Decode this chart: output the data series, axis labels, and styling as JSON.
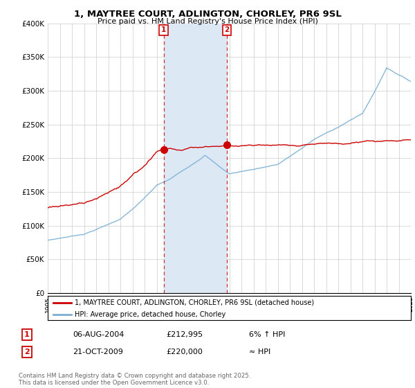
{
  "title_line1": "1, MAYTREE COURT, ADLINGTON, CHORLEY, PR6 9SL",
  "title_line2": "Price paid vs. HM Land Registry's House Price Index (HPI)",
  "ylim": [
    0,
    400000
  ],
  "yticks": [
    0,
    50000,
    100000,
    150000,
    200000,
    250000,
    300000,
    350000,
    400000
  ],
  "ytick_labels": [
    "£0",
    "£50K",
    "£100K",
    "£150K",
    "£200K",
    "£250K",
    "£300K",
    "£350K",
    "£400K"
  ],
  "sale1_date_num": 2004.58,
  "sale1_price": 212995,
  "sale2_date_num": 2009.8,
  "sale2_price": 220000,
  "legend_line1": "1, MAYTREE COURT, ADLINGTON, CHORLEY, PR6 9SL (detached house)",
  "legend_line2": "HPI: Average price, detached house, Chorley",
  "table_rows": [
    [
      "1",
      "06-AUG-2004",
      "£212,995",
      "6% ↑ HPI"
    ],
    [
      "2",
      "21-OCT-2009",
      "£220,000",
      "≈ HPI"
    ]
  ],
  "footer": "Contains HM Land Registry data © Crown copyright and database right 2025.\nThis data is licensed under the Open Government Licence v3.0.",
  "red_color": "#cc0000",
  "blue_color": "#7bafd4",
  "shade_color": "#dce9f5",
  "background_color": "#ffffff",
  "grid_color": "#cccccc",
  "xlim_start": 1995,
  "xlim_end": 2025
}
